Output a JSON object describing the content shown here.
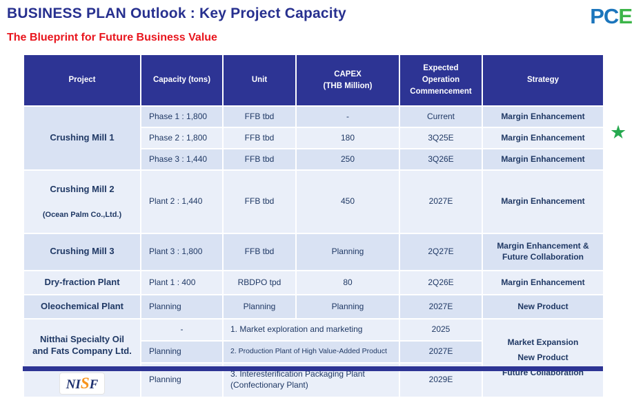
{
  "colors": {
    "title": "#27308f",
    "navy": "#2d3494",
    "text": "#1f3864",
    "row_dark": "#d9e2f3",
    "row_light": "#eaeff9",
    "red": "#e8151d",
    "star_green": "#26a94f",
    "logo_blue": "#1b75bc",
    "logo_green": "#3cb549"
  },
  "header": {
    "title": "BUSINESS PLAN Outlook : Key Project Capacity",
    "subtitle": "The Blueprint for Future Business Value",
    "logo_blue": "PC",
    "logo_green": "E"
  },
  "star_icon": "★",
  "table": {
    "columns": {
      "project": "Project",
      "capacity": "Capacity (tons)",
      "unit": "Unit",
      "capex": "CAPEX\n(THB Million)",
      "commencement": "Expected\nOperation\nCommencement",
      "strategy": "Strategy"
    },
    "mill1": {
      "name": "Crushing Mill 1",
      "rows": [
        {
          "capacity": "Phase 1 : 1,800",
          "unit": "FFB tbd",
          "capex": "-",
          "commencement": "Current",
          "strategy": "Margin Enhancement"
        },
        {
          "capacity": "Phase 2 : 1,800",
          "unit": "FFB tbd",
          "capex": "180",
          "commencement": "3Q25E",
          "strategy": "Margin Enhancement"
        },
        {
          "capacity": "Phase 3 : 1,440",
          "unit": "FFB tbd",
          "capex": "250",
          "commencement": "3Q26E",
          "strategy": "Margin Enhancement"
        }
      ]
    },
    "mill2": {
      "name": "Crushing Mill 2",
      "subname": "(Ocean Palm Co.,Ltd.)",
      "capacity": "Plant 2 : 1,440",
      "unit": "FFB tbd",
      "capex": "450",
      "commencement": "2027E",
      "strategy": "Margin Enhancement"
    },
    "mill3": {
      "name": "Crushing Mill 3",
      "capacity": "Plant 3 : 1,800",
      "unit": "FFB tbd",
      "capex": "Planning",
      "commencement": "2Q27E",
      "strategy": "Margin Enhancement &\nFuture Collaboration"
    },
    "dry_fraction": {
      "name": "Dry-fraction Plant",
      "capacity": "Plant 1 : 400",
      "unit": "RBDPO tpd",
      "capex": "80",
      "commencement": "2Q26E",
      "strategy": "Margin Enhancement"
    },
    "oleochemical": {
      "name": "Oleochemical Plant",
      "capacity": "Planning",
      "unit": "Planning",
      "capex": "Planning",
      "commencement": "2027E",
      "strategy": "New Product"
    },
    "nisf": {
      "name": "Nitthai Specialty Oil\nand Fats Company Ltd.",
      "logo_left": "NI",
      "logo_mid": "S",
      "logo_right": "F",
      "strategy": "Market Expansion\nNew Product\nFuture Collaboration",
      "rows": [
        {
          "capacity": "-",
          "activity": "1. Market exploration and marketing",
          "commencement": "2025"
        },
        {
          "capacity": "Planning",
          "activity": "2. Production Plant of High Value-Added Product",
          "commencement": "2027E"
        },
        {
          "capacity": "Planning",
          "activity": "3. Interesterification Packaging Plant\n(Confectionary Plant)",
          "commencement": "2029E"
        }
      ]
    }
  }
}
